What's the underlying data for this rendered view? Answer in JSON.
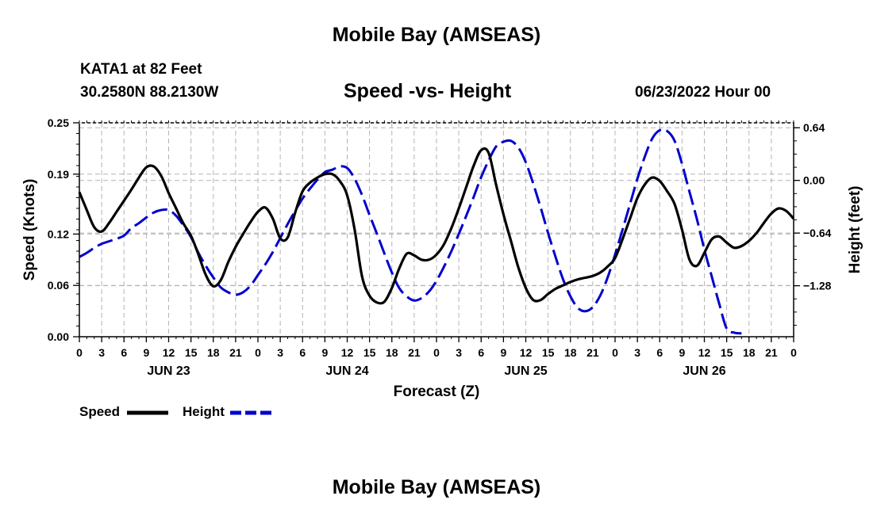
{
  "page": {
    "title": "Mobile Bay (AMSEAS)",
    "station": "KATA1 at 82 Feet",
    "coords": "30.2580N  88.2130W",
    "run_time": "06/23/2022 Hour 00",
    "footer_title": "Mobile Bay (AMSEAS)"
  },
  "chart_data": {
    "type": "line",
    "title": "Speed -vs- Height",
    "xlabel": "Forecast (Z)",
    "ylabel": "Speed (Knots)",
    "y2label": "Height (feet)",
    "x_range_hours": [
      0,
      96
    ],
    "x_tick_step_hours": 3,
    "x_tick_labels": [
      "0",
      "3",
      "6",
      "9",
      "12",
      "15",
      "18",
      "21",
      "0",
      "3",
      "6",
      "9",
      "12",
      "15",
      "18",
      "21",
      "0",
      "3",
      "6",
      "9",
      "12",
      "15",
      "18",
      "21",
      "0",
      "3",
      "6",
      "9",
      "12",
      "15",
      "18",
      "21",
      "0"
    ],
    "date_labels": [
      {
        "label": "JUN 23",
        "hour": 12
      },
      {
        "label": "JUN 24",
        "hour": 36
      },
      {
        "label": "JUN 25",
        "hour": 60
      },
      {
        "label": "JUN 26",
        "hour": 84
      }
    ],
    "ylim": [
      0,
      0.25
    ],
    "y_ticks": [
      0.0,
      0.06,
      0.12,
      0.19,
      0.25
    ],
    "y_tick_labels": [
      "0.00",
      "0.06",
      "0.12",
      "0.19",
      "0.25"
    ],
    "y2lim": [
      -1.9,
      0.7
    ],
    "y2_ticks": [
      0.64,
      0.0,
      -0.64,
      -1.28
    ],
    "y2_tick_labels": [
      "0.64",
      "0.00",
      "−0.64",
      "−1.28"
    ],
    "legend_position": "bottom-left",
    "series": [
      {
        "name": "Speed",
        "axis": "left",
        "color": "#000000",
        "style": "solid",
        "points": [
          [
            0,
            0.169
          ],
          [
            1,
            0.148
          ],
          [
            2,
            0.128
          ],
          [
            3,
            0.123
          ],
          [
            4,
            0.133
          ],
          [
            5,
            0.146
          ],
          [
            6,
            0.159
          ],
          [
            7,
            0.172
          ],
          [
            8,
            0.186
          ],
          [
            9,
            0.198
          ],
          [
            10,
            0.199
          ],
          [
            11,
            0.188
          ],
          [
            12,
            0.168
          ],
          [
            13,
            0.15
          ],
          [
            14,
            0.132
          ],
          [
            15,
            0.118
          ],
          [
            16,
            0.096
          ],
          [
            17,
            0.072
          ],
          [
            18,
            0.059
          ],
          [
            19,
            0.066
          ],
          [
            20,
            0.087
          ],
          [
            21,
            0.105
          ],
          [
            22,
            0.12
          ],
          [
            23,
            0.134
          ],
          [
            24,
            0.146
          ],
          [
            25,
            0.151
          ],
          [
            26,
            0.138
          ],
          [
            27,
            0.115
          ],
          [
            28,
            0.116
          ],
          [
            29,
            0.145
          ],
          [
            30,
            0.17
          ],
          [
            31,
            0.18
          ],
          [
            32,
            0.186
          ],
          [
            33,
            0.19
          ],
          [
            34,
            0.19
          ],
          [
            35,
            0.182
          ],
          [
            36,
            0.165
          ],
          [
            37,
            0.125
          ],
          [
            38,
            0.07
          ],
          [
            39,
            0.048
          ],
          [
            40,
            0.04
          ],
          [
            41,
            0.041
          ],
          [
            42,
            0.057
          ],
          [
            43,
            0.08
          ],
          [
            44,
            0.097
          ],
          [
            45,
            0.095
          ],
          [
            46,
            0.09
          ],
          [
            47,
            0.09
          ],
          [
            48,
            0.096
          ],
          [
            49,
            0.108
          ],
          [
            50,
            0.127
          ],
          [
            51,
            0.15
          ],
          [
            52,
            0.175
          ],
          [
            53,
            0.2
          ],
          [
            54,
            0.218
          ],
          [
            55,
            0.215
          ],
          [
            56,
            0.178
          ],
          [
            57,
            0.143
          ],
          [
            58,
            0.112
          ],
          [
            59,
            0.081
          ],
          [
            60,
            0.057
          ],
          [
            61,
            0.043
          ],
          [
            62,
            0.043
          ],
          [
            63,
            0.05
          ],
          [
            64,
            0.056
          ],
          [
            65,
            0.06
          ],
          [
            66,
            0.064
          ],
          [
            67,
            0.067
          ],
          [
            68,
            0.069
          ],
          [
            69,
            0.071
          ],
          [
            70,
            0.075
          ],
          [
            71,
            0.082
          ],
          [
            72,
            0.092
          ],
          [
            73,
            0.114
          ],
          [
            74,
            0.138
          ],
          [
            75,
            0.162
          ],
          [
            76,
            0.178
          ],
          [
            77,
            0.186
          ],
          [
            78,
            0.182
          ],
          [
            79,
            0.17
          ],
          [
            80,
            0.155
          ],
          [
            81,
            0.125
          ],
          [
            82,
            0.09
          ],
          [
            83,
            0.083
          ],
          [
            84,
            0.098
          ],
          [
            85,
            0.114
          ],
          [
            86,
            0.117
          ],
          [
            87,
            0.11
          ],
          [
            88,
            0.104
          ],
          [
            89,
            0.106
          ],
          [
            90,
            0.112
          ],
          [
            91,
            0.121
          ],
          [
            92,
            0.133
          ],
          [
            93,
            0.144
          ],
          [
            94,
            0.15
          ],
          [
            95,
            0.147
          ],
          [
            96,
            0.138
          ]
        ]
      },
      {
        "name": "Height",
        "axis": "right",
        "color": "#0000cc",
        "style": "dashed",
        "points": [
          [
            0,
            -0.93
          ],
          [
            1,
            -0.88
          ],
          [
            2,
            -0.82
          ],
          [
            3,
            -0.77
          ],
          [
            4,
            -0.74
          ],
          [
            5,
            -0.71
          ],
          [
            6,
            -0.67
          ],
          [
            7,
            -0.58
          ],
          [
            8,
            -0.52
          ],
          [
            9,
            -0.45
          ],
          [
            10,
            -0.39
          ],
          [
            11,
            -0.36
          ],
          [
            12,
            -0.36
          ],
          [
            13,
            -0.43
          ],
          [
            14,
            -0.55
          ],
          [
            15,
            -0.69
          ],
          [
            16,
            -0.88
          ],
          [
            17,
            -1.04
          ],
          [
            18,
            -1.18
          ],
          [
            19,
            -1.3
          ],
          [
            20,
            -1.36
          ],
          [
            21,
            -1.39
          ],
          [
            22,
            -1.36
          ],
          [
            23,
            -1.28
          ],
          [
            24,
            -1.15
          ],
          [
            25,
            -1.02
          ],
          [
            26,
            -0.87
          ],
          [
            27,
            -0.7
          ],
          [
            28,
            -0.53
          ],
          [
            29,
            -0.37
          ],
          [
            30,
            -0.22
          ],
          [
            31,
            -0.1
          ],
          [
            32,
            0.01
          ],
          [
            33,
            0.1
          ],
          [
            34,
            0.13
          ],
          [
            35,
            0.17
          ],
          [
            36,
            0.15
          ],
          [
            37,
            0.02
          ],
          [
            38,
            -0.18
          ],
          [
            39,
            -0.42
          ],
          [
            40,
            -0.65
          ],
          [
            41,
            -0.89
          ],
          [
            42,
            -1.12
          ],
          [
            43,
            -1.31
          ],
          [
            44,
            -1.41
          ],
          [
            45,
            -1.46
          ],
          [
            46,
            -1.43
          ],
          [
            47,
            -1.35
          ],
          [
            48,
            -1.22
          ],
          [
            49,
            -1.05
          ],
          [
            50,
            -0.86
          ],
          [
            51,
            -0.65
          ],
          [
            52,
            -0.43
          ],
          [
            53,
            -0.2
          ],
          [
            54,
            0.04
          ],
          [
            55,
            0.24
          ],
          [
            56,
            0.41
          ],
          [
            57,
            0.47
          ],
          [
            58,
            0.48
          ],
          [
            59,
            0.4
          ],
          [
            60,
            0.22
          ],
          [
            61,
            -0.04
          ],
          [
            62,
            -0.33
          ],
          [
            63,
            -0.64
          ],
          [
            64,
            -0.93
          ],
          [
            65,
            -1.2
          ],
          [
            66,
            -1.41
          ],
          [
            67,
            -1.55
          ],
          [
            68,
            -1.59
          ],
          [
            69,
            -1.54
          ],
          [
            70,
            -1.4
          ],
          [
            71,
            -1.18
          ],
          [
            72,
            -0.9
          ],
          [
            73,
            -0.6
          ],
          [
            74,
            -0.29
          ],
          [
            75,
            0.02
          ],
          [
            76,
            0.29
          ],
          [
            77,
            0.51
          ],
          [
            78,
            0.61
          ],
          [
            79,
            0.6
          ],
          [
            80,
            0.48
          ],
          [
            81,
            0.2
          ],
          [
            82,
            -0.14
          ],
          [
            83,
            -0.47
          ],
          [
            84,
            -0.84
          ],
          [
            85,
            -1.17
          ],
          [
            86,
            -1.5
          ],
          [
            87,
            -1.8
          ],
          [
            88,
            -1.85
          ],
          [
            89,
            -1.86
          ]
        ]
      }
    ]
  }
}
